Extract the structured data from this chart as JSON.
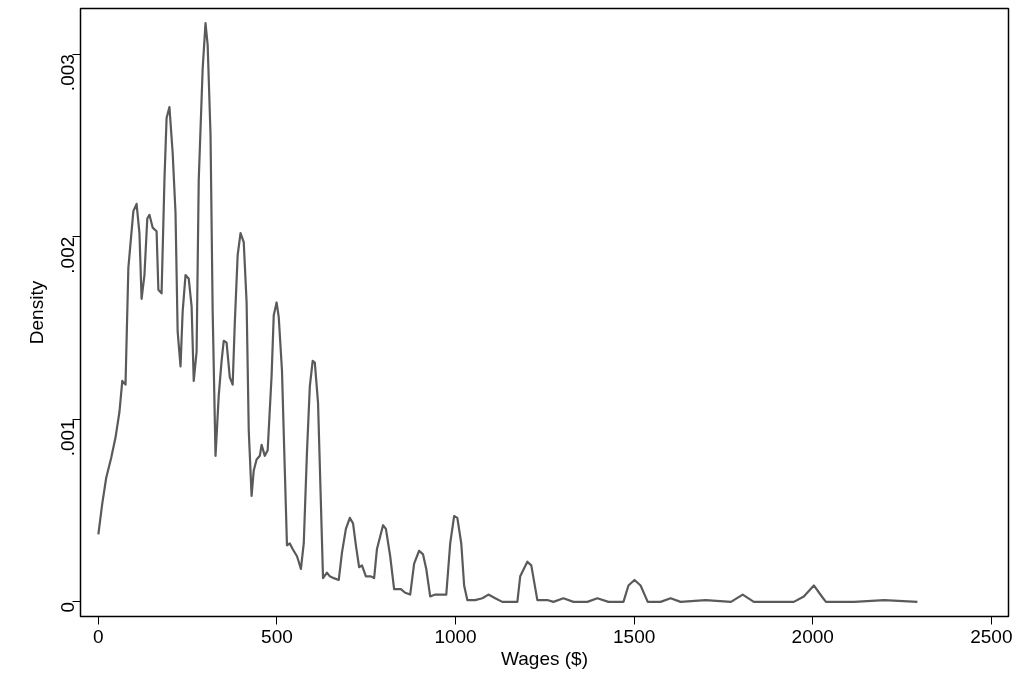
{
  "chart_data": {
    "type": "line",
    "xlabel": "Wages ($)",
    "ylabel": "Density",
    "xlim": [
      -50,
      2548
    ],
    "ylim": [
      -8e-05,
      0.00325
    ],
    "xticks": [
      0,
      500,
      1000,
      1500,
      2000,
      2500
    ],
    "yticks": [
      {
        "value": 0,
        "label": "0"
      },
      {
        "value": 0.001,
        "label": ".001"
      },
      {
        "value": 0.002,
        "label": ".002"
      },
      {
        "value": 0.003,
        "label": ".003"
      }
    ],
    "grid": false,
    "marker": "none",
    "line_style": "solid",
    "series": [
      {
        "color": "#5a5a5a",
        "x": [
          0,
          11,
          22,
          36,
          48,
          59,
          67,
          76,
          84,
          98,
          107,
          115,
          121,
          129,
          137,
          143,
          152,
          163,
          168,
          177,
          185,
          191,
          199,
          208,
          216,
          222,
          230,
          236,
          244,
          253,
          261,
          267,
          275,
          281,
          292,
          300,
          306,
          314,
          320,
          328,
          337,
          345,
          351,
          359,
          368,
          376,
          382,
          390,
          398,
          407,
          415,
          421,
          429,
          435,
          443,
          452,
          457,
          466,
          474,
          485,
          491,
          499,
          505,
          514,
          522,
          528,
          536,
          544,
          556,
          561,
          567,
          575,
          584,
          592,
          600,
          606,
          615,
          623,
          629,
          640,
          648,
          659,
          673,
          682,
          693,
          704,
          713,
          721,
          730,
          738,
          749,
          763,
          772,
          780,
          797,
          805,
          817,
          828,
          847,
          859,
          873,
          884,
          898,
          909,
          918,
          929,
          943,
          957,
          974,
          985,
          996,
          1005,
          1016,
          1024,
          1033,
          1055,
          1075,
          1092,
          1111,
          1131,
          1173,
          1181,
          1201,
          1212,
          1229,
          1257,
          1274,
          1302,
          1330,
          1369,
          1397,
          1428,
          1470,
          1484,
          1501,
          1518,
          1538,
          1574,
          1602,
          1630,
          1700,
          1771,
          1804,
          1835,
          1947,
          1975,
          2003,
          2029,
          2037,
          2116,
          2200,
          2293
        ],
        "values": [
          0.00037,
          0.00054,
          0.00068,
          0.00079,
          0.0009,
          0.00104,
          0.00121,
          0.00119,
          0.00183,
          0.00214,
          0.00218,
          0.00202,
          0.00166,
          0.00179,
          0.0021,
          0.00212,
          0.00205,
          0.00203,
          0.00171,
          0.00169,
          0.00231,
          0.00265,
          0.00271,
          0.00246,
          0.00213,
          0.00148,
          0.00129,
          0.00159,
          0.00179,
          0.00177,
          0.00162,
          0.00121,
          0.00137,
          0.00231,
          0.00292,
          0.00317,
          0.00305,
          0.00256,
          0.00159,
          0.0008,
          0.00113,
          0.00132,
          0.00143,
          0.00142,
          0.00123,
          0.00119,
          0.00153,
          0.0019,
          0.00202,
          0.00197,
          0.00164,
          0.00094,
          0.00058,
          0.00072,
          0.00078,
          0.0008,
          0.00086,
          0.0008,
          0.00083,
          0.00124,
          0.00157,
          0.00164,
          0.00156,
          0.00127,
          0.00072,
          0.00031,
          0.00032,
          0.00029,
          0.00025,
          0.00022,
          0.00018,
          0.00032,
          0.00082,
          0.00118,
          0.00132,
          0.00131,
          0.00109,
          0.00054,
          0.00013,
          0.00016,
          0.00014,
          0.00013,
          0.00012,
          0.00027,
          0.0004,
          0.00046,
          0.00043,
          0.00031,
          0.00019,
          0.0002,
          0.00014,
          0.00014,
          0.00013,
          0.00029,
          0.00042,
          0.0004,
          0.00025,
          7e-05,
          7e-05,
          5e-05,
          4e-05,
          0.00021,
          0.00028,
          0.00026,
          0.00018,
          3e-05,
          4e-05,
          4e-05,
          4e-05,
          0.00032,
          0.00047,
          0.00046,
          0.00032,
          9e-05,
          1e-05,
          1e-05,
          2e-05,
          4e-05,
          2e-05,
          0,
          0,
          0.00014,
          0.00022,
          0.0002,
          1e-05,
          1e-05,
          0,
          2e-05,
          0,
          0,
          2e-05,
          0,
          0,
          9e-05,
          0.00012,
          9e-05,
          0,
          0,
          2e-05,
          0,
          1e-05,
          0,
          4e-05,
          0,
          0,
          3e-05,
          9e-05,
          2e-05,
          0,
          0,
          1e-05,
          0
        ]
      }
    ]
  }
}
